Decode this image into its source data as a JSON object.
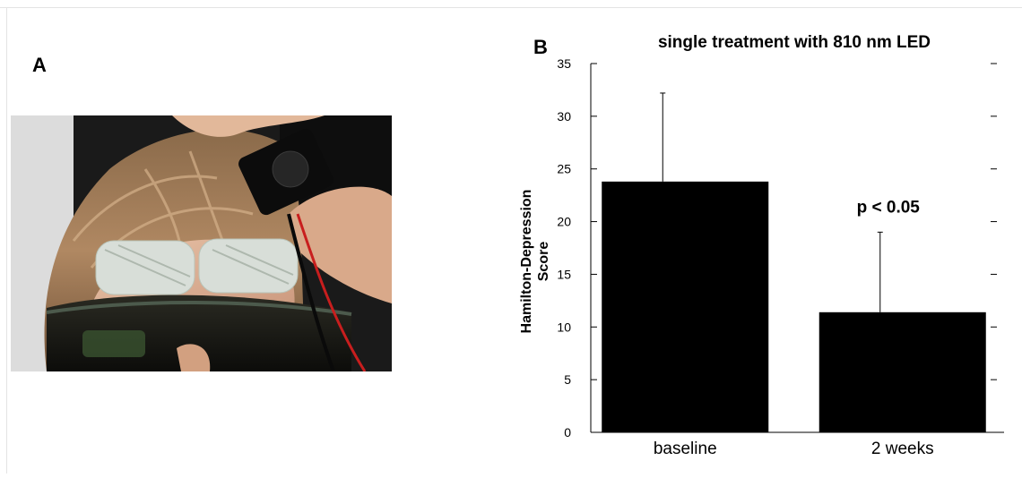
{
  "panels": {
    "a_label": "A",
    "b_label": "B"
  },
  "chart_data": {
    "type": "bar",
    "title": "single treatment with 810 nm LED",
    "ylabel_line1": "Hamilton-Depression",
    "ylabel_line2": "Score",
    "xlabel": "",
    "categories": [
      "baseline",
      "2  weeks"
    ],
    "values": [
      23.8,
      11.4
    ],
    "error_upper": [
      8.4,
      7.6
    ],
    "ylim": [
      0,
      35
    ],
    "yticks": [
      0,
      5,
      10,
      15,
      20,
      25,
      30,
      35
    ],
    "bar_color": "#000000",
    "grid": false,
    "annotations": [
      {
        "text": "p < 0.05",
        "category_index": 1
      }
    ]
  }
}
